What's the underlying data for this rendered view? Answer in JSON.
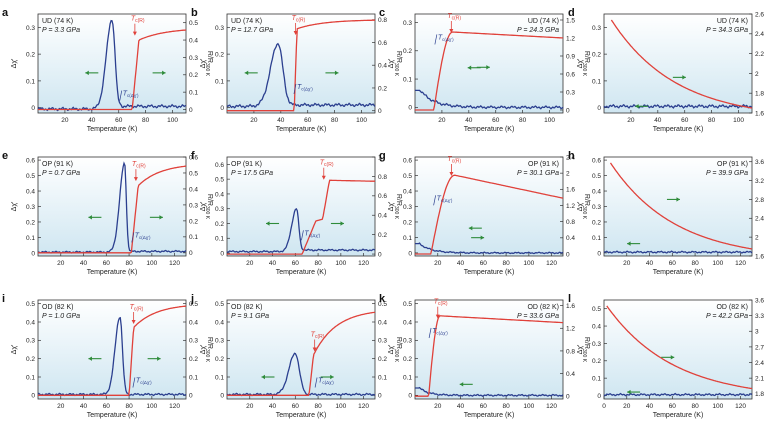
{
  "figure": {
    "colors": {
      "chi": "#2b3f8f",
      "res": "#e0413a",
      "arrow": "#2e8b3a",
      "bg_top": "#ffffff",
      "bg_bottom": "#cfe6f1",
      "axis": "#333333"
    },
    "xlabel": "Temperature (K)",
    "ylabel_left": "Δχ′",
    "ylabel_right": "R/R",
    "ylabel_right_sub": "300 K"
  },
  "chart_data": [
    {
      "panel": "a",
      "type": "line",
      "sample": "UD (74 K)",
      "pressure": "P = 3.3 GPa",
      "xlim": [
        0,
        110
      ],
      "xticks": [
        20,
        40,
        60,
        80,
        100
      ],
      "ylim_left": [
        -0.02,
        0.35
      ],
      "yticks_left": [
        0,
        0.1,
        0.2,
        0.3
      ],
      "ylim_right": [
        -0.02,
        0.55
      ],
      "yticks_right": [
        0,
        0.1,
        0.2,
        0.3,
        0.4,
        0.5
      ],
      "chi": {
        "peak_x": 55,
        "peak_y": 0.33,
        "width_left": 6,
        "width_right": 3.2,
        "base_low": -0.005,
        "base_high": 0.005,
        "step_x": 60
      },
      "res": {
        "tc_x": 70,
        "onset_x": 75,
        "jump_y": 0.4,
        "end_y": 0.47,
        "mode": "rise"
      },
      "label_tc": {
        "x": 72,
        "y": 0.5,
        "text": "T",
        "sub": "c(R)"
      },
      "label_tchi": {
        "x": 63,
        "y": 0.045,
        "text": "T",
        "sub": "c(Δχ′)"
      },
      "arrows": [
        {
          "x": 40,
          "y": 0.13,
          "dir": "left"
        },
        {
          "x": 90,
          "y": 0.13,
          "dir": "right"
        }
      ]
    },
    {
      "panel": "b",
      "type": "line",
      "sample": "UD (74 K)",
      "pressure": "P = 12.7 GPa",
      "xlim": [
        0,
        110
      ],
      "xticks": [
        20,
        40,
        60,
        80,
        100
      ],
      "ylim_left": [
        -0.02,
        0.35
      ],
      "yticks_left": [
        0,
        0.1,
        0.2,
        0.3
      ],
      "ylim_right": [
        -0.02,
        0.85
      ],
      "yticks_right": [
        0,
        0.2,
        0.4,
        0.6,
        0.8
      ],
      "chi": {
        "peak_x": 38,
        "peak_y": 0.24,
        "width_left": 8,
        "width_right": 5,
        "base_low": 0.005,
        "base_high": 0.01,
        "step_x": 45
      },
      "res": {
        "tc_x": 50,
        "onset_x": 52,
        "jump_y": 0.72,
        "end_y": 0.8,
        "mode": "rise"
      },
      "label_tc": {
        "x": 51,
        "y": 0.78,
        "text": "T",
        "sub": "c(R)"
      },
      "label_tchi": {
        "x": 52,
        "y": 0.07,
        "text": "T",
        "sub": "c(Δχ′)"
      },
      "arrows": [
        {
          "x": 18,
          "y": 0.13,
          "dir": "left"
        },
        {
          "x": 78,
          "y": 0.13,
          "dir": "right"
        }
      ]
    },
    {
      "panel": "c",
      "type": "line",
      "sample": "UD (74 K)",
      "pressure": "P = 24.3 GPa",
      "xlim": [
        0,
        110
      ],
      "xticks": [
        20,
        40,
        60,
        80,
        100
      ],
      "ylim_left": [
        -0.02,
        0.33
      ],
      "yticks_left": [
        0,
        0.1,
        0.2,
        0.3
      ],
      "ylim_right": [
        -0.05,
        1.6
      ],
      "yticks_right": [
        0,
        0.3,
        0.6,
        0.9,
        1.2,
        1.5
      ],
      "chi": {
        "peak_x": 4,
        "peak_y": 0.06,
        "width_left": 2,
        "width_right": 10,
        "base_low": 0.01,
        "base_high": 0.0,
        "step_x": 15,
        "monotone": true
      },
      "res": {
        "tc_x": 14,
        "onset_x": 28,
        "jump_y": 1.3,
        "end_y": 1.2,
        "mode": "rise_smooth"
      },
      "label_tc": {
        "x": 27,
        "y": 1.5,
        "text": "T",
        "sub": "c(R)"
      },
      "label_tchi": {
        "x": 17,
        "y": 0.24,
        "text": "T",
        "sub": "c(Δχ′)"
      },
      "arrows": [
        {
          "x": 52,
          "y": 0.96,
          "dir": "right"
        },
        {
          "x": 44,
          "y": 0.14,
          "dir": "left"
        }
      ]
    },
    {
      "panel": "d",
      "type": "line",
      "sample": "UD (74 K)",
      "pressure": "P = 34.3 GPa",
      "xlim": [
        0,
        110
      ],
      "xticks": [
        20,
        40,
        60,
        80,
        100
      ],
      "ylim_left": [
        -0.02,
        0.35
      ],
      "yticks_left": [
        0,
        0.1,
        0.2,
        0.3
      ],
      "ylim_right": [
        1.6,
        2.6
      ],
      "yticks_right": [
        1.6,
        1.8,
        2.0,
        2.2,
        2.4,
        2.6
      ],
      "chi": {
        "flat": true,
        "base_low": 0.005,
        "base_high": 0.0
      },
      "res": {
        "mode": "decay",
        "start_x": 5,
        "start_y": 2.55,
        "end_y": 1.65,
        "tau": 45
      },
      "label_tc": null,
      "label_tchi": null,
      "arrows": [
        {
          "x": 56,
          "y": 1.96,
          "dir": "right",
          "axis": "right"
        },
        {
          "x": 28,
          "y": 0.005,
          "dir": "left"
        }
      ]
    },
    {
      "panel": "e",
      "type": "line",
      "sample": "OP (91 K)",
      "pressure": "P = 0.7 GPa",
      "xlim": [
        0,
        130
      ],
      "xticks": [
        20,
        40,
        60,
        80,
        100,
        120
      ],
      "ylim_left": [
        -0.02,
        0.62
      ],
      "yticks_left": [
        0,
        0.1,
        0.2,
        0.3,
        0.4,
        0.5,
        0.6
      ],
      "ylim_right": [
        -0.02,
        0.6
      ],
      "yticks_right": [
        0,
        0.1,
        0.2,
        0.3,
        0.4,
        0.5,
        0.6
      ],
      "chi": {
        "peak_x": 76,
        "peak_y": 0.58,
        "width_left": 6,
        "width_right": 2.2,
        "base_low": 0.005,
        "base_high": 0.01,
        "step_x": 80
      },
      "res": {
        "tc_x": 82,
        "onset_x": 88,
        "jump_y": 0.42,
        "end_y": 0.56,
        "mode": "rise"
      },
      "label_tc": {
        "x": 86,
        "y": 0.53,
        "text": "T",
        "sub": "c(R)"
      },
      "label_tchi": {
        "x": 85,
        "y": 0.1,
        "text": "T",
        "sub": "c(Δχ′)"
      },
      "arrows": [
        {
          "x": 50,
          "y": 0.23,
          "dir": "left"
        },
        {
          "x": 104,
          "y": 0.23,
          "dir": "right"
        }
      ]
    },
    {
      "panel": "f",
      "type": "line",
      "sample": "OP (91 K)",
      "pressure": "P = 17.5 GPa",
      "xlim": [
        0,
        130
      ],
      "xticks": [
        20,
        40,
        60,
        80,
        100,
        120
      ],
      "ylim_left": [
        -0.02,
        0.65
      ],
      "yticks_left": [
        0,
        0.1,
        0.2,
        0.3,
        0.4,
        0.5,
        0.6
      ],
      "ylim_right": [
        -0.02,
        1.0
      ],
      "yticks_right": [
        0,
        0.2,
        0.4,
        0.6,
        0.8,
        1.0
      ],
      "chi": {
        "peak_x": 61,
        "peak_y": 0.3,
        "width_left": 6,
        "width_right": 3,
        "base_low": 0.01,
        "base_high": 0.02,
        "step_x": 66
      },
      "res": {
        "tc_x": 66,
        "onset_x": 90,
        "jump_y": 0.76,
        "end_y": 0.75,
        "mode": "two_step"
      },
      "label_tc": {
        "x": 85,
        "y": 0.9,
        "text": "T",
        "sub": "c(R)"
      },
      "label_tchi": {
        "x": 68,
        "y": 0.12,
        "text": "T",
        "sub": "c(Δχ′)"
      },
      "arrows": [
        {
          "x": 40,
          "y": 0.2,
          "dir": "left"
        },
        {
          "x": 97,
          "y": 0.2,
          "dir": "right"
        }
      ]
    },
    {
      "panel": "g",
      "type": "line",
      "sample": "OP (91 K)",
      "pressure": "P = 30.1 GPa",
      "xlim": [
        0,
        130
      ],
      "xticks": [
        20,
        40,
        60,
        80,
        100,
        120
      ],
      "ylim_left": [
        -0.02,
        0.62
      ],
      "yticks_left": [
        0,
        0.1,
        0.2,
        0.3,
        0.4,
        0.5,
        0.6
      ],
      "ylim_right": [
        -0.05,
        2.4
      ],
      "yticks_right": [
        0,
        0.4,
        0.8,
        1.2,
        1.6,
        2.0,
        2.4
      ],
      "chi": {
        "peak_x": 4,
        "peak_y": 0.06,
        "width_left": 2,
        "width_right": 10,
        "base_low": 0.01,
        "base_high": 0.0,
        "step_x": 15,
        "monotone": true
      },
      "res": {
        "tc_x": 14,
        "onset_x": 35,
        "jump_y": 1.95,
        "end_y": 1.38,
        "mode": "rise_smooth"
      },
      "label_tc": {
        "x": 32,
        "y": 2.25,
        "text": "T",
        "sub": "c(R)"
      },
      "label_tchi": {
        "x": 19,
        "y": 0.34,
        "text": "T",
        "sub": "c(Δχ′)"
      },
      "arrows": [
        {
          "x": 60,
          "y": 1.2,
          "dir": "right"
        },
        {
          "x": 53,
          "y": 0.16,
          "dir": "left"
        }
      ]
    },
    {
      "panel": "h",
      "type": "line",
      "sample": "OP (91 K)",
      "pressure": "P = 39.9 GPa",
      "xlim": [
        0,
        130
      ],
      "xticks": [
        20,
        40,
        60,
        80,
        100,
        120
      ],
      "ylim_left": [
        -0.02,
        0.62
      ],
      "yticks_left": [
        0,
        0.1,
        0.2,
        0.3,
        0.4,
        0.5,
        0.6
      ],
      "ylim_right": [
        1.6,
        3.7
      ],
      "yticks_right": [
        1.6,
        2.0,
        2.4,
        2.8,
        3.2,
        3.6
      ],
      "chi": {
        "flat": true,
        "base_low": 0.005,
        "base_high": 0.0
      },
      "res": {
        "mode": "decay",
        "start_x": 5,
        "start_y": 3.6,
        "end_y": 1.75,
        "tau": 90
      },
      "label_tc": null,
      "label_tchi": null,
      "arrows": [
        {
          "x": 61,
          "y": 2.8,
          "dir": "right",
          "axis": "right"
        },
        {
          "x": 26,
          "y": 0.06,
          "dir": "left"
        }
      ]
    },
    {
      "panel": "i",
      "type": "line",
      "sample": "OD (82 K)",
      "pressure": "P = 1.0 GPa",
      "xlim": [
        0,
        130
      ],
      "xticks": [
        20,
        40,
        60,
        80,
        100,
        120
      ],
      "ylim_left": [
        -0.02,
        0.52
      ],
      "yticks_left": [
        0,
        0.1,
        0.2,
        0.3,
        0.4,
        0.5
      ],
      "ylim_right": [
        -0.02,
        0.52
      ],
      "yticks_right": [
        0,
        0.1,
        0.2,
        0.3,
        0.4,
        0.5
      ],
      "chi": {
        "peak_x": 72,
        "peak_y": 0.43,
        "width_left": 6,
        "width_right": 3,
        "base_low": 0.005,
        "base_high": 0.005,
        "step_x": 80
      },
      "res": {
        "tc_x": 80,
        "onset_x": 84,
        "jump_y": 0.37,
        "end_y": 0.5,
        "mode": "rise"
      },
      "label_tc": {
        "x": 84,
        "y": 0.46,
        "text": "T",
        "sub": "c(R)"
      },
      "label_tchi": {
        "x": 86,
        "y": 0.07,
        "text": "T",
        "sub": "c(Δχ′)"
      },
      "arrows": [
        {
          "x": 50,
          "y": 0.2,
          "dir": "left"
        },
        {
          "x": 102,
          "y": 0.2,
          "dir": "right"
        }
      ]
    },
    {
      "panel": "j",
      "type": "line",
      "sample": "OD (82 K)",
      "pressure": "P = 9.1 GPa",
      "xlim": [
        0,
        130
      ],
      "xticks": [
        20,
        40,
        60,
        80,
        100,
        120
      ],
      "ylim_left": [
        -0.02,
        0.52
      ],
      "yticks_left": [
        0,
        0.1,
        0.2,
        0.3,
        0.4,
        0.5
      ],
      "ylim_right": [
        -0.02,
        0.52
      ],
      "yticks_right": [
        0,
        0.1,
        0.2,
        0.3,
        0.4,
        0.5
      ],
      "chi": {
        "peak_x": 60,
        "peak_y": 0.23,
        "width_left": 8,
        "width_right": 5,
        "base_low": 0.005,
        "base_high": 0.005,
        "step_x": 68
      },
      "res": {
        "tc_x": 72,
        "onset_x": 76,
        "jump_y": 0.22,
        "end_y": 0.47,
        "mode": "rise"
      },
      "label_tc": {
        "x": 77,
        "y": 0.31,
        "text": "T",
        "sub": "c(R)"
      },
      "label_tchi": {
        "x": 80,
        "y": 0.07,
        "text": "T",
        "sub": "c(Δχ′)"
      },
      "arrows": [
        {
          "x": 36,
          "y": 0.1,
          "dir": "left"
        },
        {
          "x": 88,
          "y": 0.1,
          "dir": "right"
        }
      ]
    },
    {
      "panel": "k",
      "type": "line",
      "sample": "OD (82 K)",
      "pressure": "P = 33.6 GPa",
      "xlim": [
        0,
        130
      ],
      "xticks": [
        20,
        40,
        60,
        80,
        100,
        120
      ],
      "ylim_left": [
        -0.02,
        0.52
      ],
      "yticks_left": [
        0,
        0.1,
        0.2,
        0.3,
        0.4,
        0.5
      ],
      "ylim_right": [
        -0.05,
        1.7
      ],
      "yticks_right": [
        0,
        0.4,
        0.8,
        1.2,
        1.6
      ],
      "chi": {
        "peak_x": 4,
        "peak_y": 0.04,
        "width_left": 2,
        "width_right": 8,
        "base_low": 0.005,
        "base_high": 0.0,
        "step_x": 15,
        "monotone": true
      },
      "res": {
        "tc_x": 12,
        "onset_x": 22,
        "jump_y": 1.42,
        "end_y": 1.3,
        "mode": "rise_smooth"
      },
      "label_tc": {
        "x": 20,
        "y": 1.6,
        "text": "T",
        "sub": "c(R)"
      },
      "label_tchi": {
        "x": 15,
        "y": 0.34,
        "text": "T",
        "sub": "c(Δχ′)"
      },
      "arrows": [
        {
          "x": 55,
          "y": 0.86,
          "dir": "right"
        },
        {
          "x": 45,
          "y": 0.06,
          "dir": "left"
        }
      ]
    },
    {
      "panel": "l",
      "type": "line",
      "sample": "OD (82 K)",
      "pressure": "P = 42.2 GPa",
      "xlim": [
        0,
        130
      ],
      "xticks": [
        0,
        20,
        40,
        60,
        80,
        100,
        120
      ],
      "ylim_left": [
        -0.02,
        0.55
      ],
      "yticks_left": [
        0,
        0.1,
        0.2,
        0.3,
        0.4,
        0.5
      ],
      "ylim_right": [
        1.7,
        3.6
      ],
      "yticks_right": [
        1.8,
        2.1,
        2.4,
        2.7,
        3.0,
        3.3,
        3.6
      ],
      "chi": {
        "flat": true,
        "base_low": 0.005,
        "base_high": 0.0
      },
      "res": {
        "mode": "decay",
        "start_x": 2,
        "start_y": 3.5,
        "end_y": 1.9,
        "tau": 60
      },
      "label_tc": null,
      "label_tchi": null,
      "arrows": [
        {
          "x": 56,
          "y": 2.5,
          "dir": "right",
          "axis": "right"
        },
        {
          "x": 26,
          "y": 0.02,
          "dir": "left"
        }
      ]
    }
  ]
}
